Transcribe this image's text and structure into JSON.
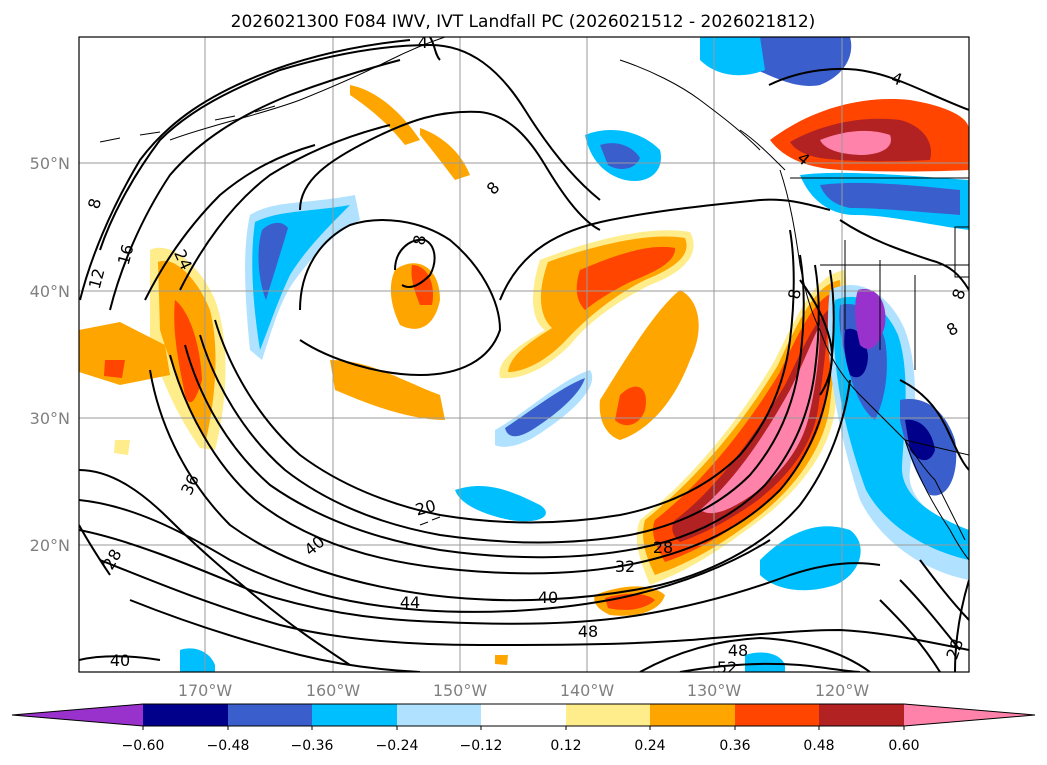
{
  "title": "2026021300 F084 IWV, IVT Landfall PC (2026021512 - 2026021812)",
  "lat_labels": [
    "50°N",
    "40°N",
    "30°N",
    "20°N"
  ],
  "lon_labels": [
    "170°W",
    "160°W",
    "150°W",
    "140°W",
    "130°W",
    "120°W"
  ],
  "colorbar": {
    "ticks": [
      "−0.60",
      "−0.48",
      "−0.36",
      "−0.24",
      "−0.12",
      "0.12",
      "0.24",
      "0.36",
      "0.48",
      "0.60"
    ],
    "colors": [
      "#9932cc",
      "#00008b",
      "#3a5fcd",
      "#00bfff",
      "#b0e2ff",
      "#ffffff",
      "#ffec8b",
      "#ffa500",
      "#ff4500",
      "#b22222",
      "#ff82ab"
    ]
  },
  "contour_labels": [
    "4",
    "8",
    "8",
    "8",
    "12",
    "16",
    "24",
    "4",
    "8",
    "20",
    "36",
    "40",
    "28",
    "28",
    "32",
    "40",
    "44",
    "48",
    "48",
    "52",
    "40",
    "28",
    "4",
    "8",
    "8"
  ]
}
